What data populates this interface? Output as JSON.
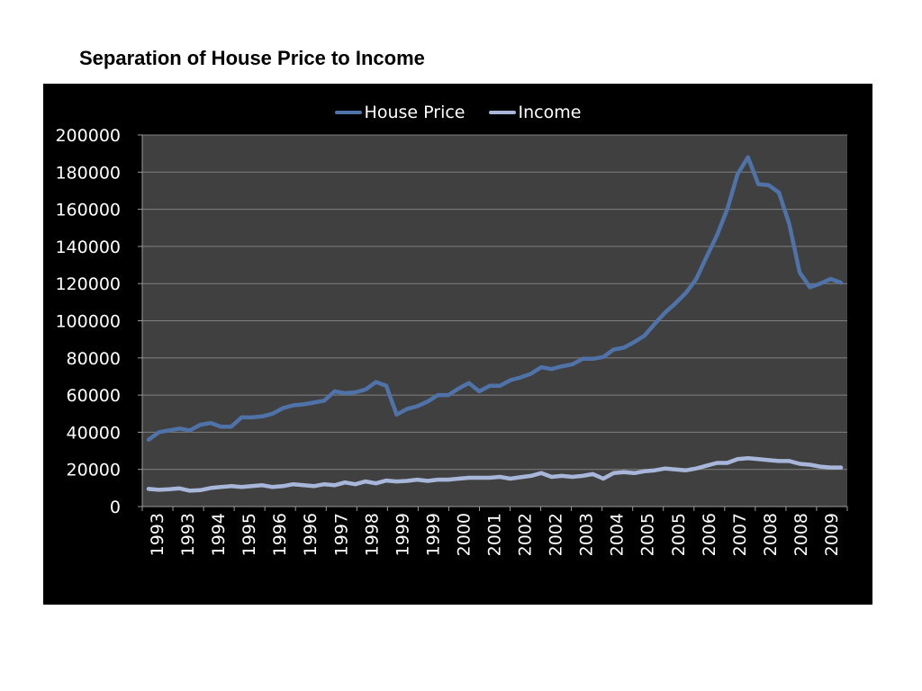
{
  "title": "Separation of House Price to Income",
  "colors": {
    "panel_bg": "#000000",
    "plot_bg": "#404040",
    "grid": "#7f7f7f",
    "text": "#ffffff",
    "house_price": "#4f72a8",
    "income": "#a7b6d9"
  },
  "chart_data": {
    "type": "line",
    "title": "",
    "xlabel": "",
    "ylabel": "",
    "ylim": [
      0,
      200000
    ],
    "yticks": [
      0,
      20000,
      40000,
      60000,
      80000,
      100000,
      120000,
      140000,
      160000,
      180000,
      200000
    ],
    "grid": true,
    "legend_position": "top-center",
    "x_tick_labels": [
      "1993",
      "1993",
      "1994",
      "1995",
      "1996",
      "1996",
      "1997",
      "1998",
      "1999",
      "1999",
      "2000",
      "2001",
      "2002",
      "2002",
      "2003",
      "2004",
      "2005",
      "2005",
      "2006",
      "2007",
      "2008",
      "2008",
      "2009"
    ],
    "series": [
      {
        "name": "House Price",
        "color": "#4f72a8",
        "values": [
          36000,
          40000,
          41000,
          42000,
          41000,
          44000,
          45000,
          43000,
          43000,
          48000,
          48000,
          48500,
          50000,
          53000,
          54500,
          55000,
          56000,
          57000,
          62000,
          61000,
          61500,
          63000,
          67000,
          65000,
          49500,
          52500,
          54000,
          56500,
          60000,
          60000,
          63500,
          66500,
          62000,
          65000,
          65000,
          68000,
          69500,
          71500,
          75000,
          74000,
          75500,
          76500,
          79500,
          79500,
          80500,
          84500,
          85500,
          88500,
          92000,
          98500,
          104500,
          109500,
          115000,
          122500,
          134500,
          146000,
          160000,
          179000,
          188000,
          173500,
          173000,
          169000,
          152000,
          126000,
          118000,
          120000,
          122500,
          120500
        ]
      },
      {
        "name": "Income",
        "color": "#a7b6d9",
        "values": [
          9500,
          9000,
          9300,
          9800,
          8500,
          8800,
          10000,
          10500,
          11000,
          10500,
          11000,
          11500,
          10500,
          11000,
          12000,
          11500,
          11000,
          12000,
          11500,
          13000,
          12000,
          13500,
          12500,
          14000,
          13500,
          13800,
          14500,
          13800,
          14500,
          14500,
          15000,
          15500,
          15500,
          15500,
          16000,
          15000,
          15800,
          16500,
          18000,
          16000,
          16500,
          16000,
          16500,
          17500,
          15000,
          18000,
          18500,
          18000,
          19000,
          19500,
          20500,
          20000,
          19500,
          20500,
          22000,
          23500,
          23500,
          25500,
          26000,
          25500,
          25000,
          24500,
          24500,
          23000,
          22500,
          21500,
          21000,
          21000
        ]
      }
    ]
  }
}
